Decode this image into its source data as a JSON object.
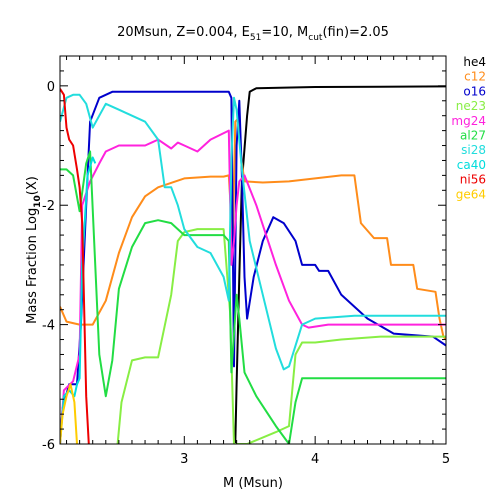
{
  "chart_data": {
    "type": "line",
    "title": "20Msun, Z=0.004, E",
    "title_e_sub": "51",
    "title_mid": "=10, M",
    "title_m_sub": "cut",
    "title_end": "(fin)=2.05",
    "xlabel": "M (Msun)",
    "ylabel": "Mass Fraction Log",
    "ylabel_sub": "10",
    "ylabel_end": "(X)",
    "xlim": [
      2.05,
      5.0
    ],
    "ylim": [
      -6,
      0.5
    ],
    "x_ticks": [
      3,
      4,
      5
    ],
    "y_ticks": [
      0,
      -2,
      -4,
      -6
    ],
    "grid": false,
    "legend_position": "right",
    "series": [
      {
        "name": "he4",
        "color": "#000000",
        "points": [
          [
            3.39,
            -6
          ],
          [
            3.4,
            -5.0
          ],
          [
            3.42,
            -3.2
          ],
          [
            3.44,
            -1.6
          ],
          [
            3.48,
            -0.5
          ],
          [
            3.5,
            -0.1
          ],
          [
            3.55,
            -0.04
          ],
          [
            4.0,
            -0.02
          ],
          [
            5.0,
            -0.01
          ]
        ]
      },
      {
        "name": "c12",
        "color": "#ff8c1a",
        "points": [
          [
            2.05,
            -3.7
          ],
          [
            2.1,
            -3.95
          ],
          [
            2.2,
            -4.0
          ],
          [
            2.3,
            -4.0
          ],
          [
            2.4,
            -3.6
          ],
          [
            2.5,
            -2.8
          ],
          [
            2.6,
            -2.2
          ],
          [
            2.7,
            -1.85
          ],
          [
            2.8,
            -1.7
          ],
          [
            3.0,
            -1.55
          ],
          [
            3.2,
            -1.52
          ],
          [
            3.3,
            -1.52
          ],
          [
            3.34,
            -1.5
          ],
          [
            3.37,
            -2.6
          ],
          [
            3.39,
            -0.6
          ],
          [
            3.41,
            -0.55
          ],
          [
            3.44,
            -1.3
          ],
          [
            3.46,
            -1.6
          ],
          [
            3.6,
            -1.62
          ],
          [
            3.8,
            -1.6
          ],
          [
            4.0,
            -1.55
          ],
          [
            4.2,
            -1.5
          ],
          [
            4.3,
            -1.5
          ],
          [
            4.35,
            -2.3
          ],
          [
            4.45,
            -2.55
          ],
          [
            4.55,
            -2.55
          ],
          [
            4.58,
            -3.0
          ],
          [
            4.75,
            -3.0
          ],
          [
            4.78,
            -3.4
          ],
          [
            4.92,
            -3.45
          ],
          [
            4.95,
            -3.9
          ],
          [
            4.98,
            -4.2
          ],
          [
            5.0,
            -4.25
          ]
        ]
      },
      {
        "name": "o16",
        "color": "#0000cc",
        "points": [
          [
            2.05,
            -6
          ],
          [
            2.07,
            -5.4
          ],
          [
            2.12,
            -5.0
          ],
          [
            2.18,
            -5.0
          ],
          [
            2.21,
            -4.0
          ],
          [
            2.25,
            -2.0
          ],
          [
            2.28,
            -0.6
          ],
          [
            2.35,
            -0.2
          ],
          [
            2.45,
            -0.1
          ],
          [
            2.6,
            -0.1
          ],
          [
            3.2,
            -0.1
          ],
          [
            3.34,
            -0.1
          ],
          [
            3.36,
            -0.2
          ],
          [
            3.38,
            -4.7
          ],
          [
            3.4,
            -1.0
          ],
          [
            3.42,
            -0.25
          ],
          [
            3.44,
            -1.5
          ],
          [
            3.46,
            -3.2
          ],
          [
            3.48,
            -3.9
          ],
          [
            3.53,
            -3.2
          ],
          [
            3.6,
            -2.6
          ],
          [
            3.68,
            -2.2
          ],
          [
            3.76,
            -2.3
          ],
          [
            3.85,
            -2.6
          ],
          [
            3.9,
            -3.0
          ],
          [
            4.0,
            -3.0
          ],
          [
            4.03,
            -3.1
          ],
          [
            4.1,
            -3.1
          ],
          [
            4.2,
            -3.5
          ],
          [
            4.4,
            -3.9
          ],
          [
            4.6,
            -4.15
          ],
          [
            4.9,
            -4.2
          ],
          [
            5.0,
            -4.35
          ]
        ]
      },
      {
        "name": "ne23",
        "color": "#88ee44",
        "points": [
          [
            2.49,
            -6
          ],
          [
            2.52,
            -5.3
          ],
          [
            2.6,
            -4.6
          ],
          [
            2.7,
            -4.55
          ],
          [
            2.8,
            -4.55
          ],
          [
            2.9,
            -3.5
          ],
          [
            2.95,
            -2.6
          ],
          [
            3.0,
            -2.45
          ],
          [
            3.1,
            -2.4
          ],
          [
            3.3,
            -2.4
          ],
          [
            3.35,
            -3.8
          ],
          [
            3.38,
            -6
          ],
          [
            3.48,
            -6
          ],
          [
            3.7,
            -5.8
          ],
          [
            3.8,
            -5.7
          ],
          [
            3.85,
            -4.5
          ],
          [
            3.9,
            -4.3
          ],
          [
            4.0,
            -4.3
          ],
          [
            4.2,
            -4.25
          ],
          [
            4.5,
            -4.2
          ],
          [
            5.0,
            -4.2
          ]
        ]
      },
      {
        "name": "mg24",
        "color": "#ff22dd",
        "points": [
          [
            2.05,
            -6
          ],
          [
            2.08,
            -5.1
          ],
          [
            2.15,
            -4.95
          ],
          [
            2.2,
            -4.5
          ],
          [
            2.22,
            -2.0
          ],
          [
            2.28,
            -1.6
          ],
          [
            2.35,
            -1.3
          ],
          [
            2.4,
            -1.1
          ],
          [
            2.5,
            -1.0
          ],
          [
            2.7,
            -1.0
          ],
          [
            2.75,
            -0.95
          ],
          [
            2.8,
            -0.9
          ],
          [
            2.9,
            -1.05
          ],
          [
            2.95,
            -0.95
          ],
          [
            3.0,
            -1.0
          ],
          [
            3.1,
            -1.1
          ],
          [
            3.2,
            -0.9
          ],
          [
            3.34,
            -0.75
          ],
          [
            3.36,
            -3.0
          ],
          [
            3.38,
            -2.6
          ],
          [
            3.4,
            -2.0
          ],
          [
            3.42,
            -1.6
          ],
          [
            3.46,
            -1.5
          ],
          [
            3.55,
            -2.0
          ],
          [
            3.7,
            -3.0
          ],
          [
            3.8,
            -3.6
          ],
          [
            3.9,
            -4.0
          ],
          [
            3.95,
            -4.05
          ],
          [
            4.1,
            -4.0
          ],
          [
            4.5,
            -4.0
          ],
          [
            5.0,
            -4.0
          ]
        ]
      },
      {
        "name": "al27",
        "color": "#22dd44",
        "points": [
          [
            2.05,
            -1.4
          ],
          [
            2.1,
            -1.4
          ],
          [
            2.15,
            -1.5
          ],
          [
            2.2,
            -2.1
          ],
          [
            2.25,
            -1.3
          ],
          [
            2.28,
            -1.1
          ],
          [
            2.35,
            -4.5
          ],
          [
            2.4,
            -5.2
          ],
          [
            2.45,
            -4.6
          ],
          [
            2.5,
            -3.4
          ],
          [
            2.6,
            -2.7
          ],
          [
            2.7,
            -2.3
          ],
          [
            2.8,
            -2.25
          ],
          [
            2.9,
            -2.3
          ],
          [
            3.0,
            -2.5
          ],
          [
            3.2,
            -2.5
          ],
          [
            3.3,
            -2.5
          ],
          [
            3.34,
            -2.6
          ],
          [
            3.36,
            -4.8
          ],
          [
            3.4,
            -3.5
          ],
          [
            3.42,
            -3.9
          ],
          [
            3.46,
            -4.8
          ],
          [
            3.55,
            -5.2
          ],
          [
            3.7,
            -5.7
          ],
          [
            3.8,
            -6.0
          ],
          [
            3.85,
            -5.3
          ],
          [
            3.9,
            -4.9
          ],
          [
            4.0,
            -4.9
          ],
          [
            4.5,
            -4.9
          ],
          [
            5.0,
            -4.9
          ]
        ]
      },
      {
        "name": "si28",
        "color": "#22dddd",
        "points": [
          [
            2.05,
            -0.6
          ],
          [
            2.1,
            -0.2
          ],
          [
            2.15,
            -0.15
          ],
          [
            2.2,
            -0.15
          ],
          [
            2.25,
            -0.3
          ],
          [
            2.3,
            -0.7
          ],
          [
            2.4,
            -0.3
          ],
          [
            2.5,
            -0.4
          ],
          [
            2.6,
            -0.5
          ],
          [
            2.7,
            -0.6
          ],
          [
            2.8,
            -0.9
          ],
          [
            2.85,
            -1.7
          ],
          [
            2.9,
            -1.7
          ],
          [
            2.95,
            -2.0
          ],
          [
            3.0,
            -2.4
          ],
          [
            3.1,
            -2.7
          ],
          [
            3.2,
            -2.8
          ],
          [
            3.3,
            -3.2
          ],
          [
            3.34,
            -3.6
          ],
          [
            3.36,
            -1.2
          ],
          [
            3.38,
            -0.2
          ],
          [
            3.4,
            -0.4
          ],
          [
            3.44,
            -1.4
          ],
          [
            3.5,
            -2.6
          ],
          [
            3.6,
            -3.5
          ],
          [
            3.7,
            -4.4
          ],
          [
            3.76,
            -4.75
          ],
          [
            3.8,
            -4.7
          ],
          [
            3.9,
            -4.0
          ],
          [
            4.0,
            -3.9
          ],
          [
            4.3,
            -3.85
          ],
          [
            4.6,
            -3.85
          ],
          [
            5.0,
            -3.85
          ]
        ]
      },
      {
        "name": "ca40",
        "color": "#00dddd",
        "points": [
          [
            2.05,
            -6
          ],
          [
            2.08,
            -5.2
          ],
          [
            2.12,
            -5.1
          ],
          [
            2.16,
            -5.2
          ],
          [
            2.18,
            -5.0
          ],
          [
            2.2,
            -4.9
          ],
          [
            2.22,
            -3.0
          ],
          [
            2.26,
            -1.5
          ],
          [
            2.3,
            -1.2
          ],
          [
            2.32,
            -1.3
          ]
        ]
      },
      {
        "name": "ni56",
        "color": "#ee0000",
        "points": [
          [
            2.05,
            -0.05
          ],
          [
            2.08,
            -0.15
          ],
          [
            2.1,
            -0.7
          ],
          [
            2.12,
            -0.9
          ],
          [
            2.15,
            -1.0
          ],
          [
            2.18,
            -1.4
          ],
          [
            2.2,
            -1.7
          ],
          [
            2.22,
            -2.3
          ],
          [
            2.25,
            -5.2
          ],
          [
            2.27,
            -6
          ]
        ]
      },
      {
        "name": "ge64",
        "color": "#ffcc00",
        "points": [
          [
            2.05,
            -6
          ],
          [
            2.07,
            -5.5
          ],
          [
            2.1,
            -5.2
          ],
          [
            2.13,
            -5.0
          ],
          [
            2.16,
            -5.3
          ],
          [
            2.18,
            -6
          ]
        ]
      }
    ]
  }
}
